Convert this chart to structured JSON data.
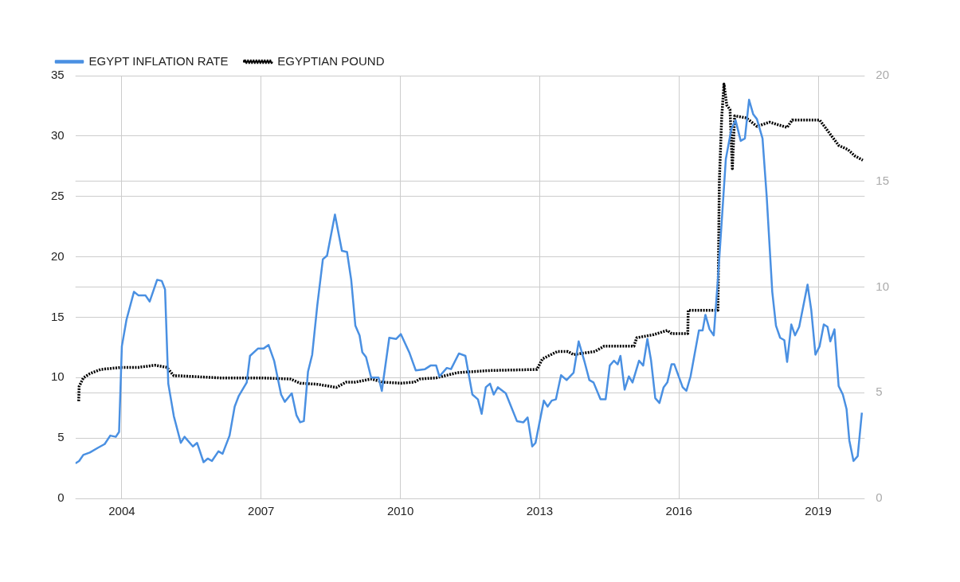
{
  "chart_data": {
    "type": "line",
    "xlim": [
      2003,
      2020
    ],
    "xticks": [
      2004,
      2007,
      2010,
      2013,
      2016,
      2019
    ],
    "ylim": [
      0,
      35
    ],
    "yticks": [
      0,
      5,
      10,
      15,
      20,
      25,
      30,
      35
    ],
    "y2lim": [
      0,
      20
    ],
    "y2ticks": [
      0,
      5,
      10,
      15,
      20
    ],
    "grid": true,
    "legend": "top left",
    "marker": "none",
    "series": [
      {
        "name": "EGYPT INFLATION RATE",
        "color": "#4a90e2",
        "line_style": "solid",
        "x": [
          2003.0,
          2003.08,
          2003.17,
          2003.31,
          2003.49,
          2003.63,
          2003.75,
          2003.87,
          2003.94,
          2004.0,
          2004.1,
          2004.26,
          2004.36,
          2004.51,
          2004.6,
          2004.76,
          2004.86,
          2004.93,
          2005.0,
          2005.12,
          2005.27,
          2005.35,
          2005.53,
          2005.62,
          2005.76,
          2005.85,
          2005.94,
          2006.08,
          2006.17,
          2006.32,
          2006.43,
          2006.52,
          2006.69,
          2006.76,
          2006.93,
          2007.05,
          2007.16,
          2007.28,
          2007.43,
          2007.51,
          2007.66,
          2007.76,
          2007.84,
          2007.92,
          2008.01,
          2008.1,
          2008.21,
          2008.33,
          2008.42,
          2008.59,
          2008.74,
          2008.85,
          2008.94,
          2009.03,
          2009.12,
          2009.18,
          2009.26,
          2009.37,
          2009.53,
          2009.6,
          2009.76,
          2009.91,
          2010.01,
          2010.19,
          2010.33,
          2010.53,
          2010.65,
          2010.77,
          2010.84,
          2011.0,
          2011.09,
          2011.26,
          2011.4,
          2011.55,
          2011.67,
          2011.75,
          2011.84,
          2011.93,
          2012.01,
          2012.1,
          2012.27,
          2012.51,
          2012.65,
          2012.74,
          2012.84,
          2012.91,
          2013.09,
          2013.17,
          2013.26,
          2013.35,
          2013.46,
          2013.58,
          2013.73,
          2013.84,
          2013.96,
          2014.07,
          2014.16,
          2014.31,
          2014.42,
          2014.51,
          2014.6,
          2014.68,
          2014.74,
          2014.83,
          2014.92,
          2015.0,
          2015.14,
          2015.23,
          2015.32,
          2015.4,
          2015.49,
          2015.58,
          2015.67,
          2015.75,
          2015.84,
          2015.9,
          2016.08,
          2016.16,
          2016.25,
          2016.43,
          2016.51,
          2016.57,
          2016.66,
          2016.75,
          2016.84,
          2017.01,
          2017.13,
          2017.22,
          2017.33,
          2017.42,
          2017.51,
          2017.6,
          2017.68,
          2017.8,
          2017.89,
          2018.01,
          2018.09,
          2018.18,
          2018.27,
          2018.33,
          2018.42,
          2018.5,
          2018.59,
          2018.77,
          2018.85,
          2018.94,
          2019.03,
          2019.12,
          2019.2,
          2019.26,
          2019.35,
          2019.44,
          2019.53,
          2019.61,
          2019.67,
          2019.76,
          2019.85,
          2019.94
        ],
        "values": [
          2.9,
          3.1,
          3.6,
          3.8,
          4.2,
          4.5,
          5.2,
          5.1,
          5.5,
          12.6,
          14.8,
          17.1,
          16.8,
          16.8,
          16.3,
          18.1,
          18.0,
          17.3,
          9.5,
          6.8,
          4.6,
          5.1,
          4.3,
          4.6,
          3.0,
          3.3,
          3.1,
          3.9,
          3.7,
          5.2,
          7.6,
          8.5,
          9.6,
          11.8,
          12.4,
          12.4,
          12.7,
          11.4,
          8.6,
          8.0,
          8.7,
          6.9,
          6.3,
          6.4,
          10.5,
          11.9,
          16.0,
          19.8,
          20.1,
          23.5,
          20.5,
          20.4,
          18.1,
          14.3,
          13.5,
          12.1,
          11.7,
          10.0,
          10.0,
          8.9,
          13.3,
          13.2,
          13.6,
          12.1,
          10.6,
          10.7,
          11.0,
          11.0,
          10.1,
          10.8,
          10.7,
          12.0,
          11.8,
          8.6,
          8.2,
          7.0,
          9.2,
          9.5,
          8.6,
          9.2,
          8.7,
          6.4,
          6.3,
          6.7,
          4.3,
          4.6,
          8.1,
          7.6,
          8.1,
          8.2,
          10.2,
          9.8,
          10.4,
          13.0,
          11.4,
          9.8,
          9.6,
          8.2,
          8.2,
          11.0,
          11.4,
          11.1,
          11.8,
          9.0,
          10.1,
          9.6,
          11.4,
          11.0,
          13.2,
          11.4,
          8.3,
          7.9,
          9.2,
          9.6,
          11.1,
          11.1,
          9.2,
          8.9,
          10.1,
          13.9,
          13.9,
          15.2,
          14.0,
          13.5,
          18.2,
          28.1,
          30.6,
          31.3,
          29.6,
          29.8,
          33.0,
          31.8,
          31.4,
          29.8,
          25.0,
          17.1,
          14.3,
          13.3,
          13.1,
          11.3,
          14.4,
          13.5,
          14.2,
          17.7,
          15.6,
          11.9,
          12.6,
          14.4,
          14.2,
          13.0,
          14.0,
          9.3,
          8.6,
          7.4,
          4.8,
          3.1,
          3.5,
          7.1
        ]
      },
      {
        "name": "EGYPTIAN POUND",
        "color": "#000000",
        "line_style": "dotted",
        "axis": "y2",
        "x": [
          2003.07,
          2003.08,
          2003.17,
          2003.31,
          2003.54,
          2004.0,
          2004.36,
          2004.71,
          2004.97,
          2005.12,
          2005.24,
          2006.11,
          2007.0,
          2007.63,
          2007.84,
          2008.21,
          2008.62,
          2008.83,
          2009.03,
          2009.38,
          2009.62,
          2010.01,
          2010.3,
          2010.42,
          2010.77,
          2011.23,
          2011.93,
          2012.94,
          2013.06,
          2013.38,
          2013.61,
          2013.73,
          2014.19,
          2014.39,
          2015.03,
          2015.09,
          2015.46,
          2015.75,
          2015.84,
          2016.19,
          2016.2,
          2016.84,
          2016.87,
          2016.92,
          2016.97,
          2017.03,
          2017.1,
          2017.15,
          2017.2,
          2017.45,
          2017.68,
          2017.95,
          2018.33,
          2018.44,
          2019.03,
          2019.15,
          2019.44,
          2019.64,
          2019.79,
          2019.96
        ],
        "values": [
          4.6,
          5.3,
          5.7,
          5.9,
          6.1,
          6.2,
          6.2,
          6.3,
          6.2,
          5.8,
          5.8,
          5.7,
          5.7,
          5.65,
          5.45,
          5.4,
          5.25,
          5.5,
          5.5,
          5.65,
          5.5,
          5.45,
          5.5,
          5.65,
          5.7,
          5.95,
          6.05,
          6.1,
          6.6,
          6.95,
          6.95,
          6.8,
          6.95,
          7.2,
          7.2,
          7.6,
          7.75,
          7.95,
          7.8,
          7.8,
          8.9,
          8.9,
          15.0,
          18.0,
          19.6,
          18.6,
          18.4,
          15.6,
          18.1,
          18.0,
          17.6,
          17.8,
          17.55,
          17.9,
          17.9,
          17.55,
          16.7,
          16.5,
          16.2,
          16.0
        ]
      }
    ]
  }
}
